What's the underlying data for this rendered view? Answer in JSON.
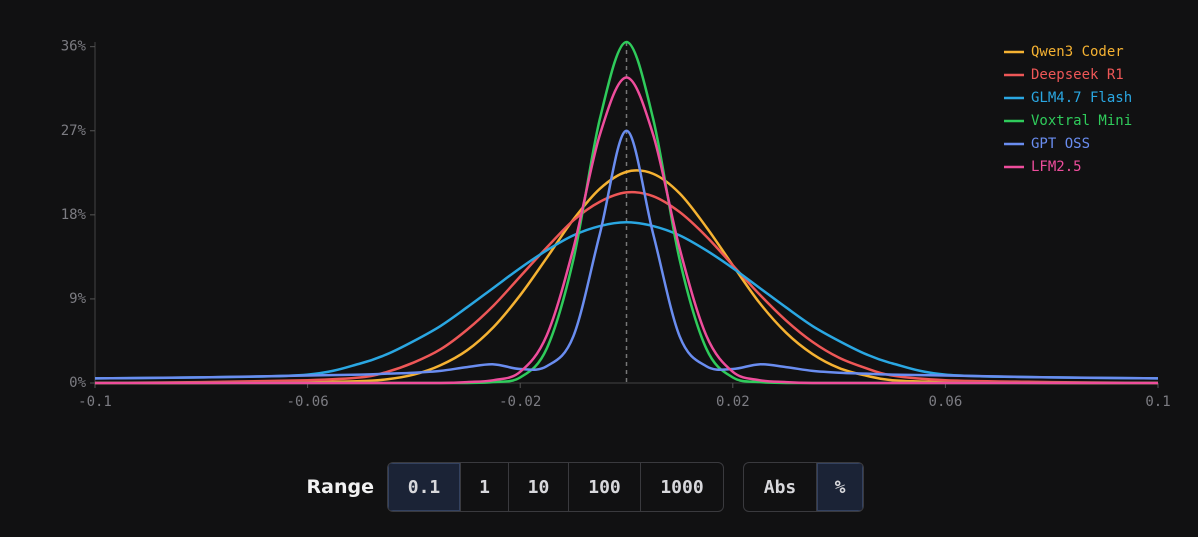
{
  "chart_data": {
    "type": "line",
    "x": [
      -0.1,
      -0.08,
      -0.06,
      -0.05,
      -0.045,
      -0.04,
      -0.035,
      -0.03,
      -0.025,
      -0.02,
      -0.015,
      -0.01,
      -0.005,
      0,
      0.005,
      0.01,
      0.015,
      0.02,
      0.025,
      0.03,
      0.035,
      0.04,
      0.045,
      0.05,
      0.06,
      0.08,
      0.1
    ],
    "series": [
      {
        "name": "Qwen3 Coder",
        "color": "#f5b232",
        "values": [
          0,
          0,
          0.1,
          0.2,
          0.4,
          0.9,
          1.9,
          3.5,
          6.0,
          9.4,
          13.4,
          17.5,
          20.8,
          22.6,
          22.4,
          20.3,
          16.7,
          12.6,
          8.6,
          5.4,
          3.1,
          1.6,
          0.8,
          0.3,
          0.1,
          0,
          0
        ]
      },
      {
        "name": "Deepseek R1",
        "color": "#ee5757",
        "values": [
          0,
          0.1,
          0.3,
          0.6,
          1.2,
          2.2,
          3.6,
          5.7,
          8.3,
          11.4,
          14.5,
          17.4,
          19.4,
          20.4,
          20.0,
          18.3,
          15.7,
          12.6,
          9.5,
          6.7,
          4.4,
          2.7,
          1.6,
          0.8,
          0.3,
          0.1,
          0
        ]
      },
      {
        "name": "GLM4.7 Flash",
        "color": "#2aa7e2",
        "values": [
          0.5,
          0.6,
          0.9,
          2.1,
          3.1,
          4.5,
          6.1,
          8.1,
          10.2,
          12.3,
          14.2,
          15.8,
          16.8,
          17.2,
          16.8,
          15.8,
          14.2,
          12.3,
          10.2,
          8.1,
          6.1,
          4.5,
          3.1,
          2.1,
          0.9,
          0.6,
          0.5
        ]
      },
      {
        "name": "Voxtral Mini",
        "color": "#2fcb5b",
        "values": [
          0,
          0,
          0,
          0,
          0,
          0,
          0,
          0,
          0.1,
          0.6,
          3.7,
          13.2,
          28.3,
          36.5,
          28.3,
          13.2,
          3.7,
          0.6,
          0.1,
          0,
          0,
          0,
          0,
          0,
          0,
          0,
          0
        ]
      },
      {
        "name": "GPT OSS",
        "color": "#6a8df0",
        "values": [
          0.5,
          0.6,
          0.8,
          0.9,
          1.0,
          1.1,
          1.3,
          1.7,
          2.0,
          1.5,
          1.8,
          5,
          16,
          27,
          16,
          5,
          1.8,
          1.5,
          2.0,
          1.7,
          1.3,
          1.1,
          1.0,
          0.9,
          0.8,
          0.6,
          0.5
        ]
      },
      {
        "name": "LFM2.5",
        "color": "#ee4d9c",
        "values": [
          0,
          0,
          0,
          0,
          0,
          0,
          0,
          0.1,
          0.3,
          1.2,
          5.1,
          14.4,
          26.6,
          32.7,
          26.6,
          14.4,
          5.1,
          1.2,
          0.3,
          0.1,
          0,
          0,
          0,
          0,
          0,
          0,
          0
        ]
      }
    ],
    "xlim": [
      -0.1,
      0.1
    ],
    "xticks": [
      -0.1,
      -0.06,
      -0.02,
      0.02,
      0.06,
      0.1
    ],
    "ylim": [
      0,
      36.5
    ],
    "yticks": [
      {
        "value": 0,
        "label": "0%"
      },
      {
        "value": 9,
        "label": "9%"
      },
      {
        "value": 18,
        "label": "18%"
      },
      {
        "value": 27,
        "label": "27%"
      },
      {
        "value": 36,
        "label": "36%"
      }
    ],
    "reference_x": 0,
    "legend": "top-right"
  },
  "controls": {
    "range_label": "Range",
    "range_options": [
      "0.1",
      "1",
      "10",
      "100",
      "1000"
    ],
    "selected_range": "0.1",
    "mode_options": [
      "Abs",
      "%"
    ],
    "selected_mode": "%"
  }
}
